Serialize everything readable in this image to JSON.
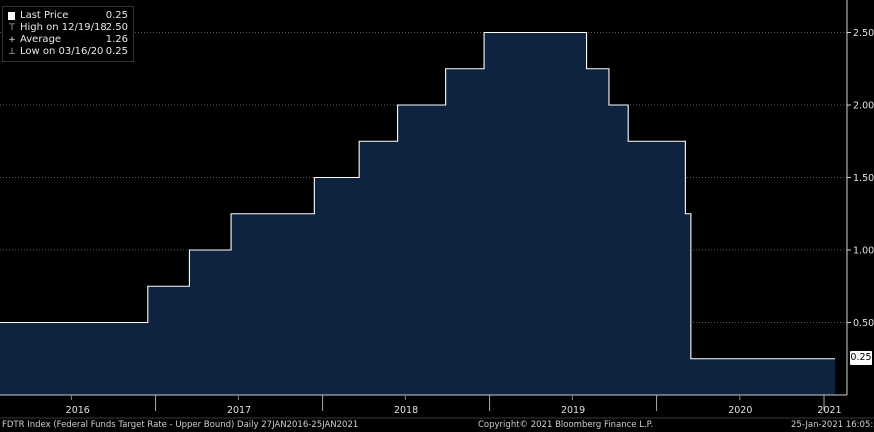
{
  "legend": {
    "items": [
      {
        "icon": "square-icon",
        "label": "Last Price",
        "value": "0.25"
      },
      {
        "icon": "high-marker-icon",
        "label": "High on 12/19/18",
        "value": "2.50"
      },
      {
        "icon": "average-marker-icon",
        "label": "Average",
        "value": "1.26"
      },
      {
        "icon": "low-marker-icon",
        "label": "Low on 03/16/20",
        "value": "0.25"
      }
    ]
  },
  "last_value_label": "0.25",
  "footer": {
    "left": "FDTR Index (Federal Funds Target Rate - Upper Bound)  Daily 27JAN2016-25JAN2021",
    "center": "Copyright© 2021 Bloomberg Finance L.P.",
    "right": "25-Jan-2021 16:05:56"
  },
  "colors": {
    "background": "#000000",
    "fill": "#0e2340",
    "line": "#ffffff",
    "grid": "#5a5a5a",
    "axis_text": "#e0e0e0"
  },
  "chart_data": {
    "type": "area",
    "step": true,
    "title": "FDTR Index (Federal Funds Target Rate - Upper Bound)",
    "x_range": [
      "2016-01-27",
      "2021-01-25"
    ],
    "ylim": [
      0,
      2.75
    ],
    "y_ticks": [
      "0.50",
      "1.00",
      "1.50",
      "2.00",
      "2.50"
    ],
    "x_labels": [
      "2016",
      "2017",
      "2018",
      "2019",
      "2020",
      "2021"
    ],
    "series": [
      {
        "name": "Last Price",
        "points": [
          {
            "date": "2016-01-27",
            "value": 0.5
          },
          {
            "date": "2016-12-15",
            "value": 0.75
          },
          {
            "date": "2017-03-16",
            "value": 1.0
          },
          {
            "date": "2017-06-15",
            "value": 1.25
          },
          {
            "date": "2017-12-14",
            "value": 1.5
          },
          {
            "date": "2018-03-22",
            "value": 1.75
          },
          {
            "date": "2018-06-14",
            "value": 2.0
          },
          {
            "date": "2018-09-27",
            "value": 2.25
          },
          {
            "date": "2018-12-20",
            "value": 2.5
          },
          {
            "date": "2019-08-01",
            "value": 2.25
          },
          {
            "date": "2019-09-19",
            "value": 2.0
          },
          {
            "date": "2019-10-31",
            "value": 1.75
          },
          {
            "date": "2020-03-04",
            "value": 1.25
          },
          {
            "date": "2020-03-16",
            "value": 0.25
          },
          {
            "date": "2021-01-25",
            "value": 0.25
          }
        ]
      }
    ],
    "grid": true,
    "legend_position": "top-left",
    "last_price": 0.25,
    "high": {
      "date": "12/19/18",
      "value": 2.5
    },
    "average": 1.26,
    "low": {
      "date": "03/16/20",
      "value": 0.25
    }
  }
}
